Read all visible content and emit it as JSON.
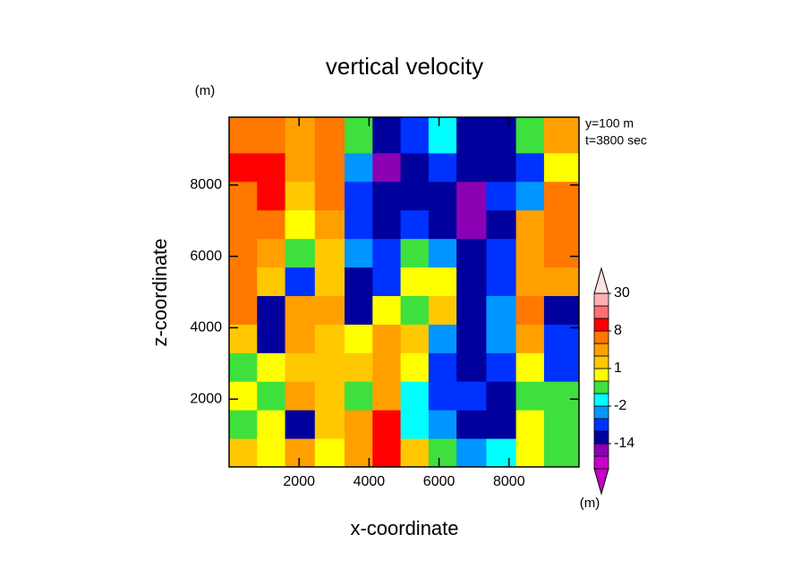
{
  "chart_data": {
    "type": "contour",
    "title": "vertical velocity",
    "y_unit": "(m)",
    "annotations": [
      "y=100 m",
      "t=3800 sec"
    ],
    "x_label": "x-coordinate",
    "y_label": "z-coordinate",
    "xlim": [
      0,
      10000
    ],
    "ylim": [
      100,
      9900
    ],
    "xticks": [
      2000,
      4000,
      6000,
      8000
    ],
    "yticks": [
      2000,
      4000,
      6000,
      8000
    ],
    "x": [
      400,
      1200,
      2000,
      2900,
      3700,
      4500,
      5300,
      6100,
      6900,
      7800,
      8600,
      9400
    ],
    "y": [
      500,
      1300,
      2100,
      2900,
      3700,
      4500,
      5300,
      6100,
      6900,
      7700,
      8500,
      9300
    ],
    "z": [
      [
        1,
        0.5,
        3,
        0.5,
        3,
        10,
        1,
        -0.5,
        -3,
        -1.5,
        0.5,
        -0.5
      ],
      [
        -0.5,
        0.5,
        -10,
        1,
        3,
        10,
        -1.5,
        -3,
        -10,
        -10,
        0.5,
        -0.5
      ],
      [
        0.5,
        -0.5,
        3,
        1,
        -0.5,
        3,
        -1.5,
        -6,
        -6,
        -10,
        -0.5,
        -0.5
      ],
      [
        -0.5,
        0.5,
        1,
        1.5,
        1,
        3,
        0.5,
        -6,
        -10,
        -6,
        0.5,
        -6
      ],
      [
        1,
        -10,
        3,
        1,
        0.5,
        3,
        1,
        -3,
        -10,
        -3,
        3,
        -6
      ],
      [
        5,
        -10,
        3,
        3,
        -10,
        0.5,
        -0.5,
        1,
        -10,
        -3,
        5,
        -10
      ],
      [
        5,
        1,
        -6,
        1,
        -10,
        -6,
        0.5,
        0.5,
        -10,
        -6,
        3,
        3
      ],
      [
        5,
        3,
        -0.5,
        1,
        -3,
        -6,
        -0.5,
        -3,
        -10,
        -6,
        3,
        5
      ],
      [
        5,
        5,
        0.5,
        3,
        -6,
        -10,
        -6,
        -10,
        -15,
        -10,
        3,
        5
      ],
      [
        5,
        10,
        1,
        5,
        -6,
        -10,
        -10,
        -10,
        -15,
        -6,
        -3,
        5
      ],
      [
        10,
        10,
        3,
        5,
        -3,
        -15,
        -10,
        -6,
        -10,
        -10,
        -6,
        0.5
      ],
      [
        5,
        5,
        3,
        5,
        -0.5,
        -10,
        -6,
        -1.5,
        -10,
        -10,
        -0.5,
        3
      ]
    ],
    "levels": [
      -30,
      -20,
      -14,
      -8,
      -4,
      -2,
      -1,
      0,
      1,
      2,
      4,
      8,
      14,
      20,
      30
    ],
    "colors": [
      "#c800c8",
      "#c800c8",
      "#8c00b4",
      "#00009c",
      "#0032ff",
      "#0096ff",
      "#00ffff",
      "#3ee03e",
      "#ffff00",
      "#ffc800",
      "#ffa000",
      "#ff7800",
      "#ff0000",
      "#ff7070",
      "#ffb0b0",
      "#ffe4e4"
    ],
    "colorbar_ticks": [
      30,
      8,
      1,
      -2,
      -14
    ],
    "colorbar_unit": "(m)"
  }
}
